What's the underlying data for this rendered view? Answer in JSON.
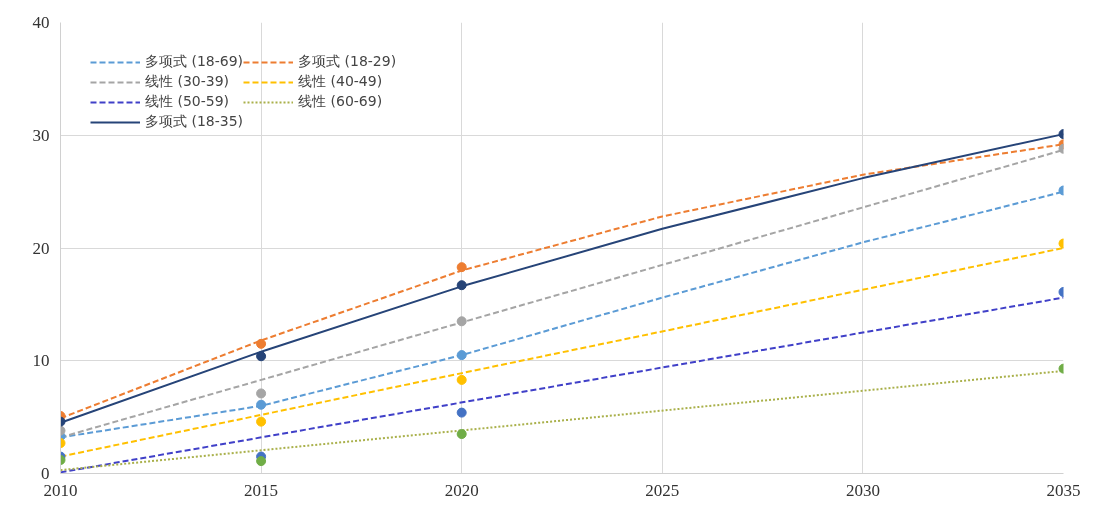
{
  "chart_data": {
    "type": "line",
    "xlim": [
      2010,
      2035
    ],
    "ylim": [
      0,
      40
    ],
    "xticks": [
      2010,
      2015,
      2020,
      2025,
      2030,
      2035
    ],
    "yticks": [
      0,
      10,
      20,
      30,
      40
    ],
    "grid": true,
    "legend": "top left",
    "series": [
      {
        "name": "多项式 (18-69)",
        "color": "#5b9bd5",
        "line_style": "dashed",
        "marker": "none",
        "x": [
          2010,
          2015,
          2020,
          2025,
          2030,
          2035
        ],
        "values": [
          3.2,
          6.0,
          10.5,
          15.6,
          20.5,
          25.0
        ]
      },
      {
        "name": "多项式 (18-29)",
        "color": "#ed7d31",
        "line_style": "dashed",
        "marker": "none",
        "x": [
          2010,
          2015,
          2020,
          2025,
          2030,
          2035
        ],
        "values": [
          4.9,
          11.8,
          18.0,
          22.8,
          26.5,
          29.2
        ]
      },
      {
        "name": "线性 (30-39)",
        "color": "#a5a5a5",
        "line_style": "dashed",
        "marker": "none",
        "x": [
          2010,
          2035
        ],
        "values": [
          3.2,
          28.7
        ]
      },
      {
        "name": "线性 (40-49)",
        "color": "#ffc000",
        "line_style": "dashed",
        "marker": "none",
        "x": [
          2010,
          2035
        ],
        "values": [
          1.5,
          20.0
        ]
      },
      {
        "name": "线性 (50-59)",
        "color": "#4040c8",
        "line_style": "dashed",
        "marker": "none",
        "x": [
          2010,
          2035
        ],
        "values": [
          0.1,
          15.6
        ]
      },
      {
        "name": "线性 (60-69)",
        "color": "#a9b04a",
        "line_style": "dotted",
        "marker": "none",
        "x": [
          2010,
          2035
        ],
        "values": [
          0.3,
          9.1
        ]
      },
      {
        "name": "多项式 (18-35)",
        "color": "#264478",
        "line_style": "solid",
        "marker": "none",
        "x": [
          2010,
          2015,
          2020,
          2025,
          2030,
          2035
        ],
        "values": [
          4.5,
          10.8,
          16.6,
          21.7,
          26.2,
          30.1
        ]
      },
      {
        "type": "scatter",
        "color": "#5b9bd5",
        "marker": "circle",
        "x": [
          2010,
          2015,
          2020,
          2035
        ],
        "values": [
          3.3,
          6.1,
          10.5,
          25.1
        ]
      },
      {
        "type": "scatter",
        "color": "#ed7d31",
        "marker": "circle",
        "x": [
          2010,
          2015,
          2020,
          2035
        ],
        "values": [
          5.1,
          11.5,
          18.3,
          29.2
        ]
      },
      {
        "type": "scatter",
        "color": "#a5a5a5",
        "marker": "circle",
        "x": [
          2010,
          2015,
          2020,
          2035
        ],
        "values": [
          3.8,
          7.1,
          13.5,
          28.8
        ]
      },
      {
        "type": "scatter",
        "color": "#ffc000",
        "marker": "circle",
        "x": [
          2010,
          2015,
          2020,
          2035
        ],
        "values": [
          2.7,
          4.6,
          8.3,
          20.4
        ]
      },
      {
        "type": "scatter",
        "color": "#4472c4",
        "marker": "circle",
        "x": [
          2010,
          2015,
          2020,
          2035
        ],
        "values": [
          1.5,
          1.5,
          5.4,
          16.1
        ]
      },
      {
        "type": "scatter",
        "color": "#70ad47",
        "marker": "circle",
        "x": [
          2010,
          2015,
          2020,
          2035
        ],
        "values": [
          1.2,
          1.1,
          3.5,
          9.3
        ]
      },
      {
        "type": "scatter",
        "color": "#264478",
        "marker": "circle",
        "x": [
          2010,
          2015,
          2020,
          2035
        ],
        "values": [
          4.6,
          10.4,
          16.7,
          30.1
        ]
      }
    ]
  }
}
